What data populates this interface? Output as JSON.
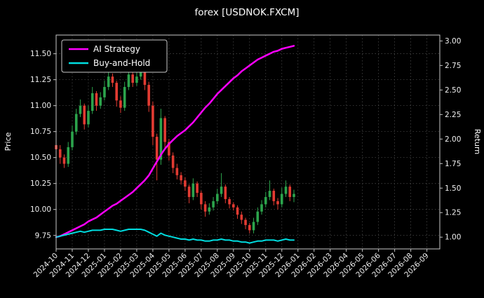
{
  "chart_data": {
    "type": "candlestick+line",
    "title": "forex [USDNOK.FXCM]",
    "background": "#000000",
    "text_color": "#ffffff",
    "grid_color": "#4f4f4f",
    "grid": true,
    "x_range": [
      0,
      23.8
    ],
    "x_tick_positions": [
      0,
      1,
      2,
      3,
      4,
      5,
      6,
      7,
      8,
      9,
      10,
      11,
      12,
      13,
      14,
      15,
      16,
      17,
      18,
      19,
      20,
      21,
      22,
      23
    ],
    "x_tick_labels": [
      "2024-10",
      "2024-11",
      "2024-12",
      "2025-01",
      "2025-02",
      "2025-03",
      "2025-04",
      "2025-05",
      "2025-06",
      "2025-07",
      "2025-08",
      "2025-09",
      "2025-10",
      "2025-11",
      "2025-12",
      "2026-01",
      "2026-02",
      "2026-03",
      "2026-04",
      "2026-05",
      "2026-06",
      "2026-07",
      "2026-08",
      "2026-09"
    ],
    "left_axis": {
      "label": "Price",
      "range": [
        9.62,
        11.68
      ],
      "ticks": [
        9.75,
        10.0,
        10.25,
        10.5,
        10.75,
        11.0,
        11.25,
        11.5
      ]
    },
    "right_axis": {
      "label": "Return",
      "range": [
        0.88,
        3.06
      ],
      "ticks": [
        1.0,
        1.25,
        1.5,
        1.75,
        2.0,
        2.25,
        2.5,
        2.75,
        3.0
      ]
    },
    "legend": {
      "position": "upper-left",
      "entries": [
        {
          "label": "AI Strategy",
          "color": "#ff00ff"
        },
        {
          "label": "Buy-and-Hold",
          "color": "#00dde0"
        }
      ]
    },
    "t_months": [
      0,
      0.25,
      0.5,
      0.75,
      1,
      1.25,
      1.5,
      1.75,
      2,
      2.25,
      2.5,
      2.75,
      3,
      3.25,
      3.5,
      3.75,
      4,
      4.25,
      4.5,
      4.75,
      5,
      5.25,
      5.5,
      5.75,
      6,
      6.25,
      6.5,
      6.75,
      7,
      7.25,
      7.5,
      7.75,
      8,
      8.25,
      8.5,
      8.75,
      9,
      9.25,
      9.5,
      9.75,
      10,
      10.25,
      10.5,
      10.75,
      11,
      11.25,
      11.5,
      11.75,
      12,
      12.25,
      12.5,
      12.75,
      13,
      13.25,
      13.5,
      13.75,
      14,
      14.25,
      14.5,
      14.75
    ],
    "candles": {
      "axis": "left",
      "up_color": "#2ca44c",
      "down_color": "#e23b32",
      "open": [
        10.62,
        10.58,
        10.5,
        10.44,
        10.6,
        10.75,
        10.92,
        11.0,
        10.82,
        10.95,
        11.12,
        11.0,
        11.08,
        11.18,
        11.28,
        11.22,
        11.05,
        10.98,
        11.18,
        11.3,
        11.22,
        11.28,
        11.35,
        11.2,
        11.0,
        10.7,
        10.48,
        10.88,
        10.65,
        10.52,
        10.4,
        10.33,
        10.28,
        10.22,
        10.12,
        10.25,
        10.16,
        10.05,
        9.98,
        10.02,
        10.08,
        10.15,
        10.22,
        10.1,
        10.05,
        10.02,
        9.95,
        9.9,
        9.85,
        9.8,
        9.88,
        9.98,
        10.05,
        10.12,
        10.18,
        10.08,
        10.05,
        10.15,
        10.22,
        10.12
      ],
      "high": [
        10.67,
        10.62,
        10.53,
        10.65,
        10.81,
        10.97,
        11.06,
        11.02,
        11.0,
        11.18,
        11.14,
        11.13,
        11.24,
        11.36,
        11.31,
        11.24,
        11.09,
        11.23,
        11.36,
        11.32,
        11.33,
        11.46,
        11.37,
        11.23,
        11.04,
        10.73,
        10.97,
        10.9,
        10.68,
        10.55,
        10.44,
        10.36,
        10.31,
        10.24,
        10.3,
        10.27,
        10.18,
        10.08,
        10.06,
        10.12,
        10.2,
        10.35,
        10.24,
        10.12,
        10.07,
        10.04,
        9.98,
        9.92,
        9.87,
        9.92,
        10.02,
        10.09,
        10.17,
        10.28,
        10.2,
        10.11,
        10.21,
        10.28,
        10.24,
        10.19
      ],
      "low": [
        10.5,
        10.44,
        10.4,
        10.41,
        10.57,
        10.72,
        10.89,
        10.77,
        10.79,
        10.92,
        10.95,
        10.97,
        11.05,
        11.15,
        11.18,
        10.99,
        10.93,
        10.95,
        11.15,
        11.18,
        11.19,
        11.25,
        11.15,
        10.94,
        10.62,
        10.28,
        10.43,
        10.59,
        10.47,
        10.35,
        10.29,
        10.24,
        10.18,
        10.06,
        10.09,
        10.12,
        10.0,
        9.93,
        9.95,
        9.99,
        10.05,
        10.12,
        10.06,
        10.01,
        9.99,
        9.91,
        9.86,
        9.81,
        9.77,
        9.77,
        9.85,
        9.95,
        10.02,
        10.09,
        10.04,
        10.0,
        10.02,
        10.12,
        10.08,
        10.07
      ],
      "close": [
        10.58,
        10.5,
        10.44,
        10.6,
        10.75,
        10.92,
        11.0,
        10.82,
        10.95,
        11.12,
        11.0,
        11.08,
        11.18,
        11.28,
        11.22,
        11.05,
        10.98,
        11.18,
        11.3,
        11.22,
        11.28,
        11.35,
        11.2,
        11.0,
        10.7,
        10.48,
        10.88,
        10.65,
        10.52,
        10.4,
        10.33,
        10.28,
        10.22,
        10.12,
        10.25,
        10.16,
        10.05,
        9.98,
        10.02,
        10.08,
        10.15,
        10.22,
        10.1,
        10.05,
        10.02,
        9.95,
        9.9,
        9.85,
        9.8,
        9.88,
        9.98,
        10.05,
        10.12,
        10.18,
        10.08,
        10.05,
        10.15,
        10.22,
        10.12,
        10.15
      ]
    },
    "series": [
      {
        "name": "AI Strategy",
        "axis": "right",
        "color": "#ff00ff",
        "width": 2.5,
        "values": [
          1.0,
          1.01,
          1.03,
          1.05,
          1.07,
          1.09,
          1.11,
          1.13,
          1.16,
          1.18,
          1.2,
          1.23,
          1.26,
          1.29,
          1.32,
          1.34,
          1.37,
          1.4,
          1.43,
          1.46,
          1.5,
          1.54,
          1.58,
          1.63,
          1.7,
          1.77,
          1.84,
          1.9,
          1.95,
          1.99,
          2.03,
          2.06,
          2.09,
          2.13,
          2.17,
          2.22,
          2.27,
          2.32,
          2.36,
          2.41,
          2.46,
          2.5,
          2.54,
          2.58,
          2.62,
          2.65,
          2.69,
          2.72,
          2.75,
          2.78,
          2.81,
          2.83,
          2.85,
          2.87,
          2.89,
          2.9,
          2.92,
          2.93,
          2.94,
          2.95
        ]
      },
      {
        "name": "Buy-and-Hold",
        "axis": "right",
        "color": "#00dde0",
        "width": 2,
        "values": [
          1.0,
          1.01,
          1.02,
          1.03,
          1.04,
          1.05,
          1.06,
          1.05,
          1.06,
          1.07,
          1.07,
          1.07,
          1.08,
          1.08,
          1.08,
          1.07,
          1.06,
          1.07,
          1.08,
          1.08,
          1.08,
          1.08,
          1.07,
          1.05,
          1.03,
          1.01,
          1.04,
          1.02,
          1.01,
          1.0,
          0.99,
          0.98,
          0.98,
          0.97,
          0.98,
          0.97,
          0.97,
          0.96,
          0.96,
          0.97,
          0.97,
          0.98,
          0.97,
          0.97,
          0.96,
          0.96,
          0.95,
          0.95,
          0.94,
          0.95,
          0.96,
          0.96,
          0.97,
          0.97,
          0.97,
          0.96,
          0.97,
          0.98,
          0.97,
          0.97
        ]
      }
    ]
  }
}
